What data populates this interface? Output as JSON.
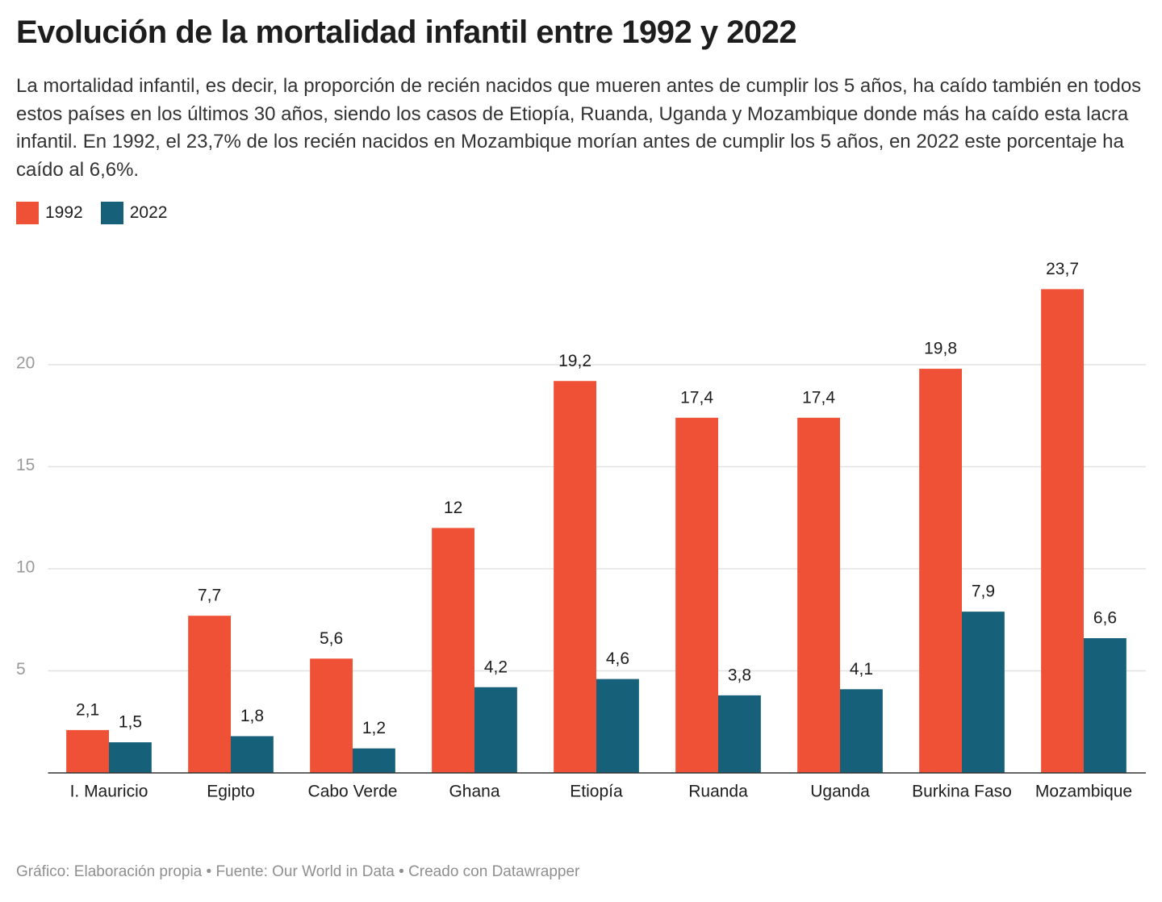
{
  "chart_data": {
    "type": "bar",
    "title": "Evolución de la mortalidad infantil entre 1992 y 2022",
    "description": "La mortalidad infantil, es decir, la proporción de recién nacidos que mueren antes de cumplir los 5 años, ha caído también en todos estos países en los últimos 30 años, siendo los casos de Etiopía, Ruanda, Uganda y Mozambique donde más ha caído esta lacra infantil. En 1992, el 23,7% de los recién nacidos en Mozambique morían antes de cumplir los 5 años, en 2022 este porcentaje ha caído al 6,6%.",
    "source": "Gráfico: Elaboración propia • Fuente: Our World in Data • Creado con Datawrapper",
    "categories": [
      "I. Mauricio",
      "Egipto",
      "Cabo Verde",
      "Ghana",
      "Etiopía",
      "Ruanda",
      "Uganda",
      "Burkina Faso",
      "Mozambique"
    ],
    "series": [
      {
        "name": "1992",
        "color": "#ef5136",
        "values": [
          2.1,
          7.7,
          5.6,
          12,
          19.2,
          17.4,
          17.4,
          19.8,
          23.7
        ],
        "value_labels": [
          "2,1",
          "7,7",
          "5,6",
          "12",
          "19,2",
          "17,4",
          "17,4",
          "19,8",
          "23,7"
        ]
      },
      {
        "name": "2022",
        "color": "#16607a",
        "values": [
          1.5,
          1.8,
          1.2,
          4.2,
          4.6,
          3.8,
          4.1,
          7.9,
          6.6
        ],
        "value_labels": [
          "1,5",
          "1,8",
          "1,2",
          "4,2",
          "4,6",
          "3,8",
          "4,1",
          "7,9",
          "6,6"
        ]
      }
    ],
    "ylim": [
      0,
      25
    ],
    "yticks": [
      5,
      10,
      15,
      20
    ],
    "grid": true,
    "legend": "top-left"
  }
}
